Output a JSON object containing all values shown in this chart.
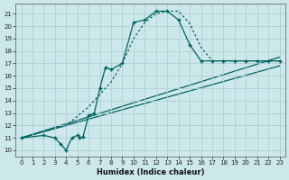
{
  "xlabel": "Humidex (Indice chaleur)",
  "bg_color": "#cce8ea",
  "grid_color": "#b0d0d5",
  "line_color": "#006060",
  "xlim": [
    -0.5,
    23.5
  ],
  "ylim": [
    9.5,
    21.8
  ],
  "xticks": [
    0,
    1,
    2,
    3,
    4,
    5,
    6,
    7,
    8,
    9,
    10,
    11,
    12,
    13,
    14,
    15,
    16,
    17,
    18,
    19,
    20,
    21,
    22,
    23
  ],
  "yticks": [
    10,
    11,
    12,
    13,
    14,
    15,
    16,
    17,
    18,
    19,
    20,
    21
  ],
  "curve_main_x": [
    0,
    2,
    3,
    3.5,
    4,
    4.5,
    5,
    5.2,
    5.5,
    6,
    6.5,
    7,
    7.5,
    8,
    9,
    10,
    11,
    12,
    13,
    14,
    15,
    16,
    17,
    18,
    19,
    20,
    21,
    22,
    23
  ],
  "curve_main_y": [
    11,
    11.2,
    11,
    10.5,
    10,
    11.0,
    11.2,
    11.0,
    11.1,
    12.8,
    13.0,
    15.0,
    16.7,
    16.5,
    17.0,
    20.3,
    20.5,
    21.2,
    21.2,
    20.5,
    18.5,
    17.2,
    17.2,
    17.2,
    17.2,
    17.2,
    17.2,
    17.2,
    17.2
  ],
  "curve_dotted_x": [
    0,
    2,
    4,
    6,
    7,
    8,
    9,
    10,
    11,
    12,
    13,
    14,
    15,
    16,
    17,
    18,
    19,
    20,
    21,
    22,
    23
  ],
  "curve_dotted_y": [
    11,
    11.5,
    12.0,
    13.5,
    14.5,
    15.5,
    17.0,
    19.0,
    20.3,
    21.0,
    21.2,
    21.2,
    20.2,
    18.3,
    17.2,
    17.2,
    17.2,
    17.2,
    17.2,
    17.2,
    17.2
  ],
  "line1_x": [
    0,
    23
  ],
  "line1_y": [
    11.0,
    17.5
  ],
  "line2_x": [
    0,
    23
  ],
  "line2_y": [
    11.0,
    16.8
  ]
}
